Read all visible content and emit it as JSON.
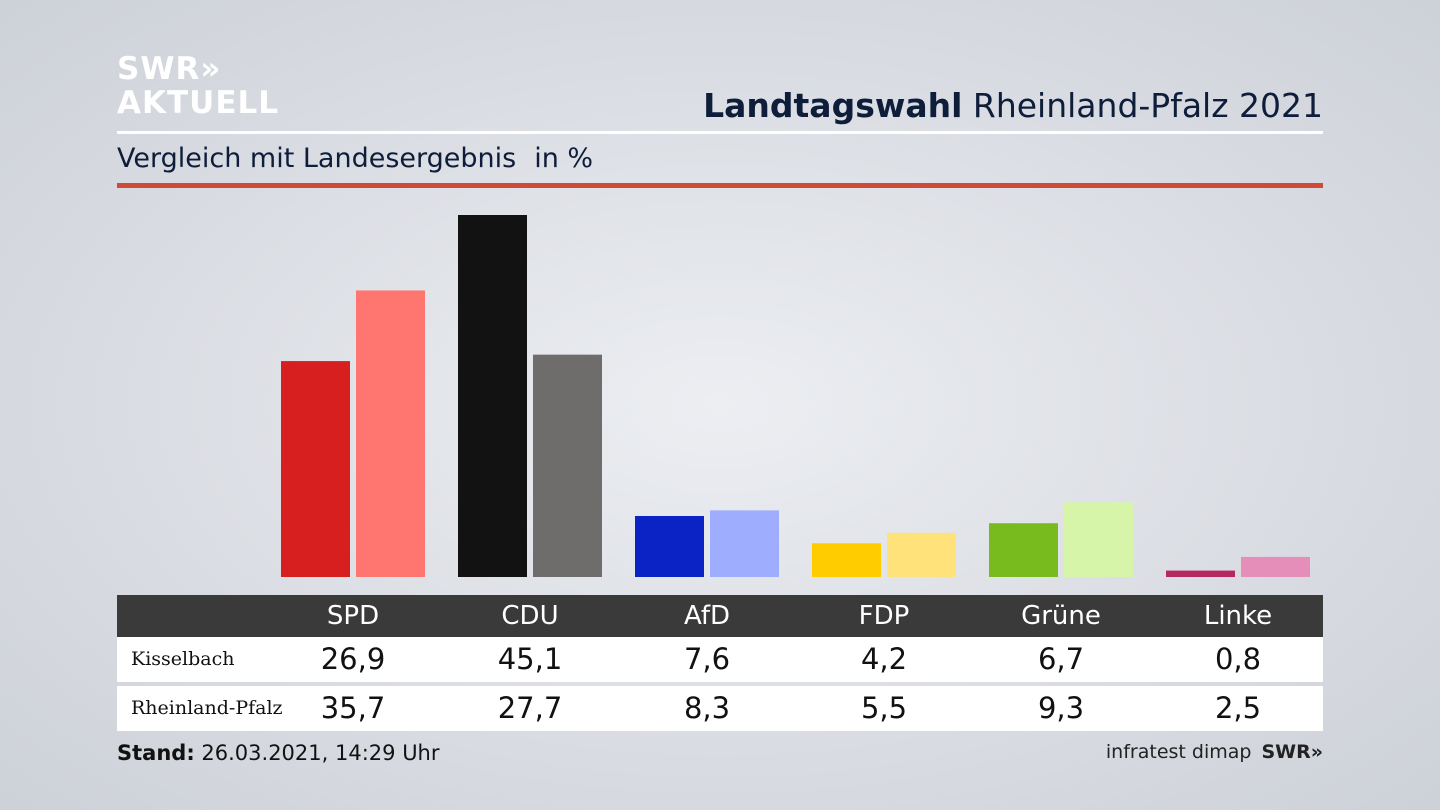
{
  "logo": {
    "line1": "SWR»",
    "line2": "AKTUELL"
  },
  "header": {
    "title_bold": "Landtagswahl",
    "title_rest": "Rheinland-Pfalz 2021",
    "subtitle": "Vergleich mit Landesergebnis",
    "unit": "in %"
  },
  "colors": {
    "accent_rule": "#cf4b38",
    "header_bg": "#3b3a3a",
    "title_text": "#0e1d3a"
  },
  "chart_data": {
    "type": "bar",
    "categories": [
      "SPD",
      "CDU",
      "AfD",
      "FDP",
      "Grüne",
      "Linke"
    ],
    "series": [
      {
        "name": "Kisselbach",
        "values": [
          26.9,
          45.1,
          7.6,
          4.2,
          6.7,
          0.8
        ],
        "colors": [
          "#d71f1f",
          "#121212",
          "#0b22c4",
          "#ffcc00",
          "#78bb1e",
          "#b6295e"
        ]
      },
      {
        "name": "Rheinland-Pfalz",
        "values": [
          35.7,
          27.7,
          8.3,
          5.5,
          9.3,
          2.5
        ],
        "colors": [
          "#ff7570",
          "#6f6d6b",
          "#9fadff",
          "#ffe27a",
          "#d6f5a8",
          "#e48eb9"
        ]
      }
    ],
    "ylim": [
      0,
      45.1
    ],
    "grid": false
  },
  "table": {
    "rows": [
      {
        "label": "Kisselbach",
        "values": [
          "26,9",
          "45,1",
          "7,6",
          "4,2",
          "6,7",
          "0,8"
        ]
      },
      {
        "label": "Rheinland-Pfalz",
        "values": [
          "35,7",
          "27,7",
          "8,3",
          "5,5",
          "9,3",
          "2,5"
        ]
      }
    ]
  },
  "footer": {
    "stand_label": "Stand:",
    "stand_value": "26.03.2021, 14:29 Uhr",
    "source": "infratest dimap",
    "source_logo": "SWR»"
  }
}
